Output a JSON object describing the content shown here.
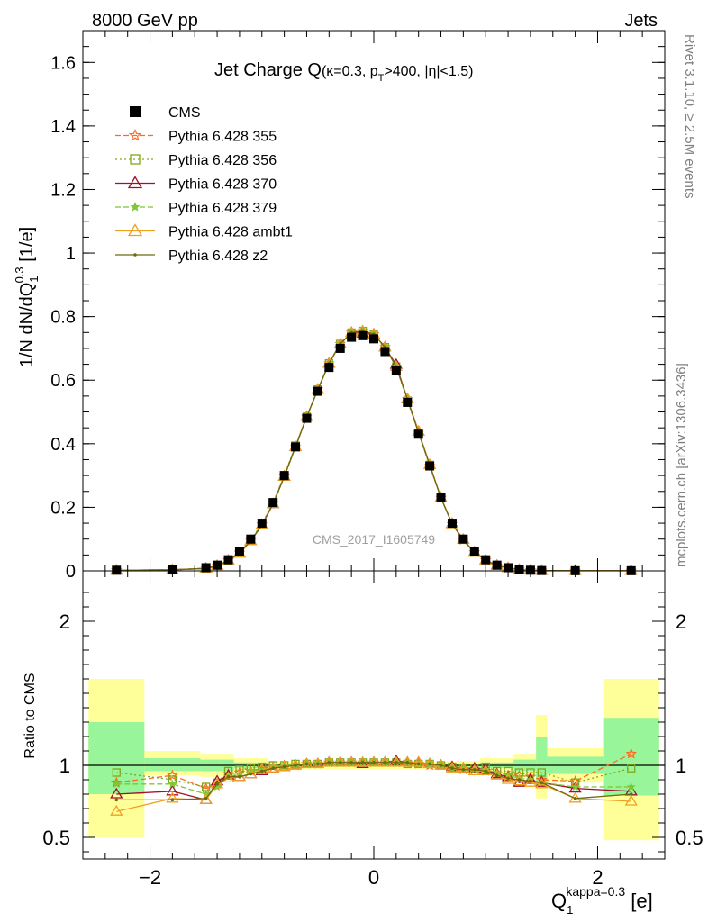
{
  "header": {
    "energy_label": "8000 GeV pp",
    "process_label": "Jets"
  },
  "side_labels": {
    "rivet": "Rivet 3.1.10, ≥ 2.5M events",
    "source": "mcplots.cern.ch [arXiv:1306.3436]"
  },
  "watermark": "CMS_2017_I1605749",
  "colors": {
    "cms": "#000000",
    "p355": "#ff6a20",
    "p356": "#7fa81c",
    "p370": "#a0102a",
    "p379": "#7cc832",
    "ambt1": "#f0a020",
    "z2": "#6b6b10",
    "band_yellow": "#ffff99",
    "band_green": "#99f599"
  },
  "chart_data": [
    {
      "type": "line",
      "title": "Jet Charge Q (κ=0.3, p_T>400, |η|<1.5)",
      "title_main": "Jet Charge Q",
      "title_kappa": "(κ=0.3, p",
      "title_sub_T": "T",
      "title_rest": ">400, |η|<1.5)",
      "ylabel": "1/N dN/dQ_1^0.3 [1/e]",
      "ylabel_main": "1/N dN/dQ",
      "ylabel_sub": "1",
      "ylabel_sup": "0.3",
      "ylabel_unit": " [1/e]",
      "xlim": [
        -2.6,
        2.6
      ],
      "ylim": [
        0,
        1.7
      ],
      "yticks": [
        "0",
        "0.2",
        "0.4",
        "0.6",
        "0.8",
        "1",
        "1.2",
        "1.4",
        "1.6"
      ],
      "legend": [
        {
          "key": "cms",
          "label": "CMS",
          "marker": "square",
          "dash": "solid"
        },
        {
          "key": "p355",
          "label": "Pythia 6.428 355",
          "marker": "star",
          "dash": "dashed"
        },
        {
          "key": "p356",
          "label": "Pythia 6.428 356",
          "marker": "square-open",
          "dash": "dotted"
        },
        {
          "key": "p370",
          "label": "Pythia 6.428 370",
          "marker": "triangle-open",
          "dash": "solid"
        },
        {
          "key": "p379",
          "label": "Pythia 6.428 379",
          "marker": "star-small",
          "dash": "dashed"
        },
        {
          "key": "ambt1",
          "label": "Pythia 6.428 ambt1",
          "marker": "triangle-open",
          "dash": "solid"
        },
        {
          "key": "z2",
          "label": "Pythia 6.428 z2",
          "marker": "dot",
          "dash": "solid"
        }
      ],
      "x": [
        -2.3,
        -1.8,
        -1.5,
        -1.4,
        -1.3,
        -1.2,
        -1.1,
        -1.0,
        -0.9,
        -0.8,
        -0.7,
        -0.6,
        -0.5,
        -0.4,
        -0.3,
        -0.2,
        -0.1,
        0.0,
        0.1,
        0.2,
        0.3,
        0.4,
        0.5,
        0.6,
        0.7,
        0.8,
        0.9,
        1.0,
        1.1,
        1.2,
        1.3,
        1.4,
        1.5,
        1.8,
        2.3
      ],
      "cms": [
        0.002,
        0.004,
        0.01,
        0.018,
        0.035,
        0.06,
        0.1,
        0.15,
        0.215,
        0.3,
        0.39,
        0.48,
        0.565,
        0.64,
        0.7,
        0.735,
        0.74,
        0.73,
        0.69,
        0.63,
        0.53,
        0.43,
        0.33,
        0.23,
        0.15,
        0.1,
        0.06,
        0.035,
        0.018,
        0.01,
        0.004,
        0.002,
        0.001,
        0.0005,
        0.0005
      ]
    },
    {
      "type": "line",
      "ylabel": "Ratio to CMS",
      "xlabel": "Q_1^kappa=0.3 [e]",
      "xlabel_main": "Q",
      "xlabel_sub": "1",
      "xlabel_sup": "kappa=0.3",
      "xlabel_unit": " [e]",
      "xlim": [
        -2.6,
        2.6
      ],
      "ylim": [
        0.35,
        2.35
      ],
      "yticks": [
        "0.5",
        "1",
        "2"
      ],
      "xticks": [
        "−2",
        "0",
        "2"
      ],
      "x": [
        -2.3,
        -1.8,
        -1.5,
        -1.4,
        -1.3,
        -1.2,
        -1.1,
        -1.0,
        -0.9,
        -0.8,
        -0.7,
        -0.6,
        -0.5,
        -0.4,
        -0.3,
        -0.2,
        -0.1,
        0.0,
        0.1,
        0.2,
        0.3,
        0.4,
        0.5,
        0.6,
        0.7,
        0.8,
        0.9,
        1.0,
        1.1,
        1.2,
        1.3,
        1.4,
        1.5,
        1.8,
        2.3
      ],
      "bands": [
        {
          "lo": -2.55,
          "hi": -2.05,
          "yellow": [
            0.5,
            1.6
          ],
          "green": [
            0.8,
            1.3
          ]
        },
        {
          "lo": -2.05,
          "hi": -1.55,
          "yellow": [
            0.93,
            1.1
          ],
          "green": [
            0.96,
            1.05
          ]
        },
        {
          "lo": -1.55,
          "hi": -1.25,
          "yellow": [
            0.92,
            1.08
          ],
          "green": [
            0.96,
            1.04
          ]
        },
        {
          "lo": -1.25,
          "hi": -0.95,
          "yellow": [
            0.95,
            1.05
          ],
          "green": [
            0.98,
            1.02
          ]
        },
        {
          "lo": -0.95,
          "hi": 0.95,
          "yellow": [
            0.97,
            1.03
          ],
          "green": [
            0.99,
            1.01
          ]
        },
        {
          "lo": 0.95,
          "hi": 1.25,
          "yellow": [
            0.95,
            1.05
          ],
          "green": [
            0.98,
            1.02
          ]
        },
        {
          "lo": 1.25,
          "hi": 1.45,
          "yellow": [
            0.92,
            1.08
          ],
          "green": [
            0.96,
            1.04
          ]
        },
        {
          "lo": 1.45,
          "hi": 1.55,
          "yellow": [
            0.77,
            1.35
          ],
          "green": [
            0.86,
            1.2
          ]
        },
        {
          "lo": 1.55,
          "hi": 2.05,
          "yellow": [
            0.88,
            1.12
          ],
          "green": [
            0.94,
            1.06
          ]
        },
        {
          "lo": 2.05,
          "hi": 2.55,
          "yellow": [
            0.48,
            1.6
          ],
          "green": [
            0.79,
            1.33
          ]
        }
      ],
      "series": {
        "p355": [
          0.88,
          0.93,
          0.84,
          0.87,
          0.94,
          0.95,
          0.96,
          0.98,
          0.99,
          1.0,
          1.0,
          1.01,
          1.01,
          1.02,
          1.02,
          1.02,
          1.02,
          1.02,
          1.02,
          1.02,
          1.02,
          1.01,
          1.0,
          1.0,
          0.98,
          0.97,
          0.97,
          0.96,
          0.94,
          0.93,
          0.93,
          0.92,
          0.9,
          0.89,
          1.08
        ],
        "p356": [
          0.95,
          0.9,
          0.85,
          0.88,
          0.96,
          0.97,
          0.98,
          0.99,
          1.0,
          1.0,
          1.01,
          1.01,
          1.01,
          1.02,
          1.02,
          1.02,
          1.02,
          1.02,
          1.02,
          1.02,
          1.01,
          1.01,
          1.01,
          1.0,
          0.99,
          0.98,
          0.98,
          0.99,
          0.96,
          0.96,
          0.95,
          0.95,
          0.95,
          0.88,
          0.98
        ],
        "p370": [
          0.8,
          0.82,
          0.76,
          0.89,
          0.93,
          0.92,
          0.94,
          0.96,
          0.98,
          0.99,
          1.0,
          1.01,
          1.01,
          1.02,
          1.02,
          1.02,
          1.01,
          1.02,
          1.02,
          1.03,
          1.02,
          1.02,
          1.01,
          1.0,
          0.99,
          0.98,
          0.98,
          0.97,
          0.94,
          0.92,
          0.88,
          0.9,
          0.88,
          0.84,
          0.82
        ],
        "p379": [
          0.87,
          0.87,
          0.8,
          0.85,
          0.92,
          0.94,
          0.96,
          0.97,
          0.99,
          1.0,
          1.0,
          1.01,
          1.01,
          1.02,
          1.02,
          1.02,
          1.02,
          1.02,
          1.02,
          1.02,
          1.02,
          1.01,
          1.01,
          1.0,
          0.98,
          0.98,
          0.97,
          0.97,
          0.95,
          0.93,
          0.91,
          0.9,
          0.88,
          0.85,
          0.85
        ],
        "ambt1": [
          0.68,
          0.77,
          0.76,
          0.87,
          0.91,
          0.92,
          0.94,
          0.97,
          0.98,
          0.99,
          1.0,
          1.01,
          1.01,
          1.02,
          1.02,
          1.02,
          1.02,
          1.02,
          1.02,
          1.02,
          1.02,
          1.02,
          1.01,
          1.0,
          0.98,
          0.98,
          0.96,
          0.96,
          0.93,
          0.9,
          0.89,
          0.88,
          0.87,
          0.77,
          0.75
        ],
        "z2": [
          0.76,
          0.76,
          0.77,
          0.87,
          0.92,
          0.92,
          0.94,
          0.96,
          0.98,
          0.99,
          1.0,
          1.01,
          1.01,
          1.02,
          1.02,
          1.02,
          1.02,
          1.02,
          1.02,
          1.02,
          1.02,
          1.01,
          1.01,
          1.0,
          0.98,
          0.97,
          0.97,
          0.96,
          0.93,
          0.91,
          0.9,
          0.89,
          0.88,
          0.77,
          0.8
        ]
      }
    }
  ]
}
